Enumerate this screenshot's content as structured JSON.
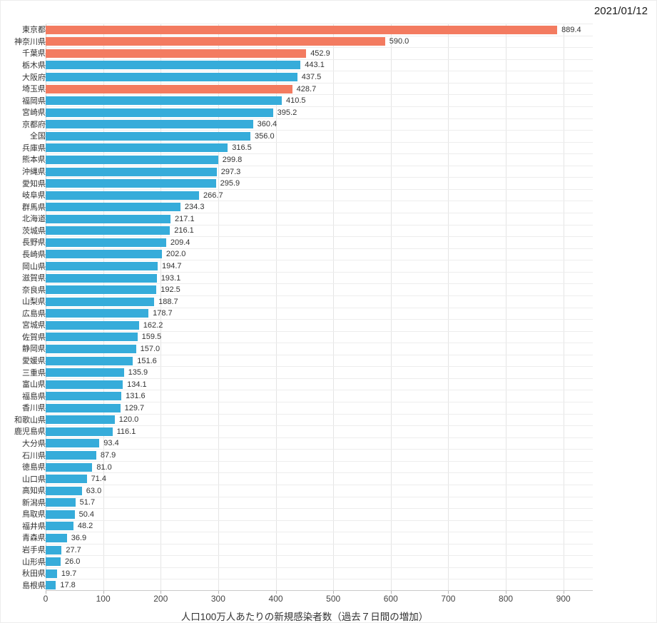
{
  "header": {
    "date": "2021/01/12"
  },
  "colors": {
    "bar_default": "#36acda",
    "bar_highlight": "#f37b60",
    "grid": "#e4e4e4",
    "axis": "#c9c9c9",
    "text": "#333333"
  },
  "chart_data": {
    "type": "bar",
    "orientation": "horizontal",
    "title": "",
    "xlabel": "人口100万人あたりの新規感染者数（過去７日間の増加）",
    "ylabel": "",
    "xlim": [
      0,
      900
    ],
    "xticks": [
      0,
      100,
      200,
      300,
      400,
      500,
      600,
      700,
      800,
      900
    ],
    "grid": "vertical-on",
    "legend": "none",
    "categories": [
      "東京都",
      "神奈川県",
      "千葉県",
      "栃木県",
      "大阪府",
      "埼玉県",
      "福岡県",
      "宮崎県",
      "京都府",
      "全国",
      "兵庫県",
      "熊本県",
      "沖縄県",
      "愛知県",
      "岐阜県",
      "群馬県",
      "北海道",
      "茨城県",
      "長野県",
      "長崎県",
      "岡山県",
      "滋賀県",
      "奈良県",
      "山梨県",
      "広島県",
      "宮城県",
      "佐賀県",
      "静岡県",
      "愛媛県",
      "三重県",
      "富山県",
      "福島県",
      "香川県",
      "和歌山県",
      "鹿児島県",
      "大分県",
      "石川県",
      "徳島県",
      "山口県",
      "高知県",
      "新潟県",
      "鳥取県",
      "福井県",
      "青森県",
      "岩手県",
      "山形県",
      "秋田県",
      "島根県"
    ],
    "values": [
      889.4,
      590.0,
      452.9,
      443.1,
      437.5,
      428.7,
      410.5,
      395.2,
      360.4,
      356.0,
      316.5,
      299.8,
      297.3,
      295.9,
      266.7,
      234.3,
      217.1,
      216.1,
      209.4,
      202.0,
      194.7,
      193.1,
      192.5,
      188.7,
      178.7,
      162.2,
      159.5,
      157.0,
      151.6,
      135.9,
      134.1,
      131.6,
      129.7,
      120.0,
      116.1,
      93.4,
      87.9,
      81.0,
      71.4,
      63.0,
      51.7,
      50.4,
      48.2,
      36.9,
      27.7,
      26.0,
      19.7,
      17.8
    ],
    "highlighted_categories": [
      "東京都",
      "神奈川県",
      "千葉県",
      "埼玉県"
    ]
  }
}
